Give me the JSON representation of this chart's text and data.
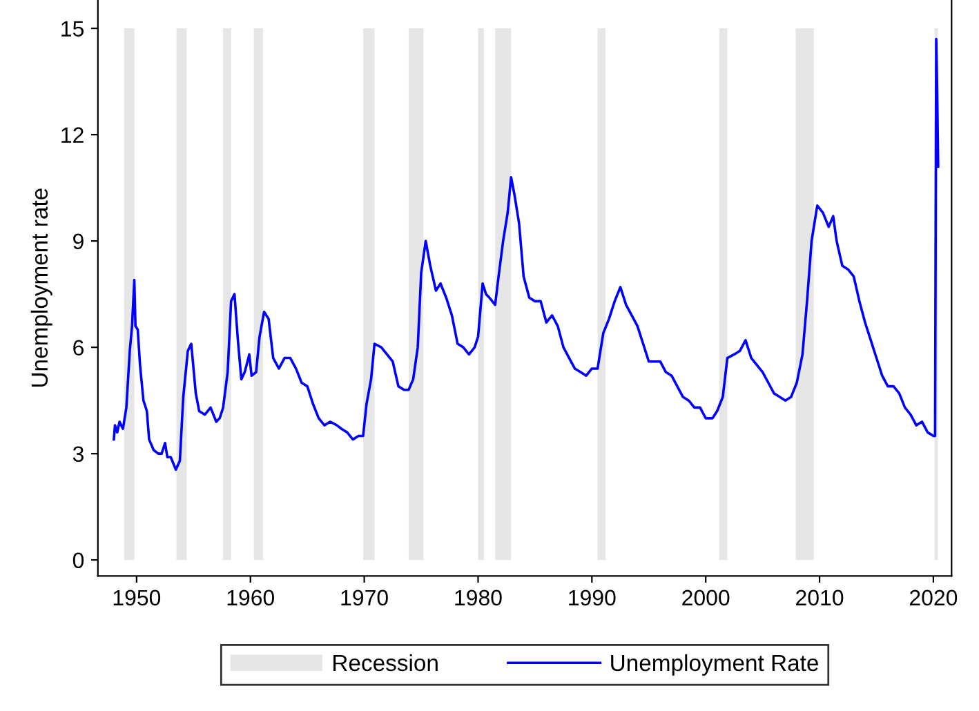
{
  "chart_data": {
    "type": "line",
    "ylabel": "Unemployment rate",
    "xlim": [
      1946.6,
      2021.6
    ],
    "xticks": [
      1950,
      1960,
      1970,
      1980,
      1990,
      2000,
      2010,
      2020
    ],
    "ylim": [
      -0.45,
      15.8
    ],
    "yticks": [
      0,
      3,
      6,
      9,
      12,
      15
    ],
    "grid": false,
    "legend": "bottom",
    "marker": "none",
    "line_style": "solid",
    "bands": [
      {
        "axis": "x",
        "from": 1948.9,
        "to": 1949.8,
        "label": "Recession",
        "color": "#e6e6e6"
      },
      {
        "axis": "x",
        "from": 1953.5,
        "to": 1954.4,
        "color": "#e6e6e6"
      },
      {
        "axis": "x",
        "from": 1957.6,
        "to": 1958.3,
        "color": "#e6e6e6"
      },
      {
        "axis": "x",
        "from": 1960.3,
        "to": 1961.1,
        "color": "#e6e6e6"
      },
      {
        "axis": "x",
        "from": 1969.9,
        "to": 1970.9,
        "color": "#e6e6e6"
      },
      {
        "axis": "x",
        "from": 1973.9,
        "to": 1975.2,
        "color": "#e6e6e6"
      },
      {
        "axis": "x",
        "from": 1980.0,
        "to": 1980.5,
        "color": "#e6e6e6"
      },
      {
        "axis": "x",
        "from": 1981.5,
        "to": 1982.9,
        "color": "#e6e6e6"
      },
      {
        "axis": "x",
        "from": 1990.5,
        "to": 1991.2,
        "color": "#e6e6e6"
      },
      {
        "axis": "x",
        "from": 2001.2,
        "to": 2001.9,
        "color": "#e6e6e6"
      },
      {
        "axis": "x",
        "from": 2007.9,
        "to": 2009.5,
        "color": "#e6e6e6"
      },
      {
        "axis": "x",
        "from": 2020.1,
        "to": 2020.4,
        "color": "#e6e6e6"
      }
    ],
    "series": [
      {
        "name": "Unemployment Rate",
        "color": "#0000ff",
        "x": [
          1948.0,
          1948.1,
          1948.3,
          1948.5,
          1948.8,
          1949.1,
          1949.4,
          1949.6,
          1949.8,
          1949.9,
          1950.1,
          1950.3,
          1950.6,
          1950.9,
          1951.1,
          1951.5,
          1951.9,
          1952.2,
          1952.5,
          1952.7,
          1953.0,
          1953.45,
          1953.8,
          1954.1,
          1954.5,
          1954.8,
          1955.2,
          1955.5,
          1956.0,
          1956.5,
          1957.0,
          1957.3,
          1957.6,
          1958.0,
          1958.3,
          1958.6,
          1958.9,
          1959.2,
          1959.5,
          1959.9,
          1960.1,
          1960.5,
          1960.8,
          1961.2,
          1961.6,
          1962.0,
          1962.5,
          1963.0,
          1963.5,
          1964.0,
          1964.5,
          1965.0,
          1965.5,
          1966.0,
          1966.5,
          1967.0,
          1967.6,
          1968.0,
          1968.5,
          1969.0,
          1969.5,
          1969.9,
          1970.2,
          1970.6,
          1970.9,
          1971.5,
          1972.0,
          1972.5,
          1973.0,
          1973.5,
          1973.9,
          1974.3,
          1974.7,
          1975.0,
          1975.4,
          1975.8,
          1976.3,
          1976.7,
          1977.2,
          1977.7,
          1978.2,
          1978.7,
          1979.2,
          1979.7,
          1980.0,
          1980.4,
          1980.7,
          1981.0,
          1981.5,
          1981.8,
          1982.2,
          1982.6,
          1982.9,
          1983.2,
          1983.6,
          1984.0,
          1984.5,
          1985.0,
          1985.5,
          1986.0,
          1986.5,
          1987.0,
          1987.5,
          1988.0,
          1988.5,
          1989.0,
          1989.5,
          1990.0,
          1990.5,
          1991.0,
          1991.5,
          1992.0,
          1992.5,
          1993.0,
          1993.5,
          1994.0,
          1994.5,
          1995.0,
          1995.5,
          1996.0,
          1996.5,
          1997.0,
          1997.5,
          1998.0,
          1998.5,
          1999.0,
          1999.5,
          2000.0,
          2000.6,
          2001.0,
          2001.5,
          2001.9,
          2002.5,
          2003.0,
          2003.5,
          2004.0,
          2004.5,
          2005.0,
          2005.5,
          2006.0,
          2006.5,
          2007.0,
          2007.5,
          2008.0,
          2008.5,
          2008.9,
          2009.3,
          2009.8,
          2010.3,
          2010.8,
          2011.2,
          2011.5,
          2012.0,
          2012.5,
          2013.0,
          2013.5,
          2014.0,
          2014.5,
          2015.0,
          2015.5,
          2016.0,
          2016.5,
          2017.0,
          2017.5,
          2018.0,
          2018.5,
          2019.0,
          2019.5,
          2020.0,
          2020.15,
          2020.25,
          2020.33,
          2020.42
        ],
        "values": [
          3.4,
          3.8,
          3.6,
          3.9,
          3.7,
          4.3,
          5.9,
          6.6,
          7.9,
          6.6,
          6.5,
          5.5,
          4.5,
          4.2,
          3.4,
          3.1,
          3.0,
          3.0,
          3.3,
          2.9,
          2.9,
          2.55,
          2.8,
          4.6,
          5.9,
          6.1,
          4.7,
          4.2,
          4.1,
          4.3,
          3.9,
          4.0,
          4.3,
          5.3,
          7.3,
          7.5,
          6.2,
          5.1,
          5.3,
          5.8,
          5.2,
          5.3,
          6.3,
          7.0,
          6.8,
          5.7,
          5.4,
          5.7,
          5.7,
          5.4,
          5.0,
          4.9,
          4.4,
          4.0,
          3.8,
          3.9,
          3.8,
          3.7,
          3.6,
          3.4,
          3.5,
          3.5,
          4.4,
          5.1,
          6.1,
          6.0,
          5.8,
          5.6,
          4.9,
          4.8,
          4.8,
          5.1,
          6.0,
          8.1,
          9.0,
          8.3,
          7.6,
          7.8,
          7.4,
          6.9,
          6.1,
          6.0,
          5.8,
          6.0,
          6.3,
          7.8,
          7.5,
          7.4,
          7.2,
          8.0,
          9.0,
          9.8,
          10.8,
          10.3,
          9.5,
          8.0,
          7.4,
          7.3,
          7.3,
          6.7,
          6.9,
          6.6,
          6.0,
          5.7,
          5.4,
          5.3,
          5.2,
          5.4,
          5.4,
          6.4,
          6.8,
          7.3,
          7.7,
          7.2,
          6.9,
          6.6,
          6.1,
          5.6,
          5.6,
          5.6,
          5.3,
          5.2,
          4.9,
          4.6,
          4.5,
          4.3,
          4.3,
          4.0,
          4.0,
          4.2,
          4.6,
          5.7,
          5.8,
          5.9,
          6.2,
          5.7,
          5.5,
          5.3,
          5.0,
          4.7,
          4.6,
          4.5,
          4.6,
          5.0,
          5.8,
          7.3,
          9.0,
          10.0,
          9.8,
          9.4,
          9.7,
          9.0,
          8.3,
          8.2,
          8.0,
          7.3,
          6.7,
          6.2,
          5.7,
          5.2,
          4.9,
          4.9,
          4.7,
          4.3,
          4.1,
          3.8,
          3.9,
          3.6,
          3.5,
          3.5,
          14.7,
          13.3,
          11.1
        ]
      }
    ]
  }
}
